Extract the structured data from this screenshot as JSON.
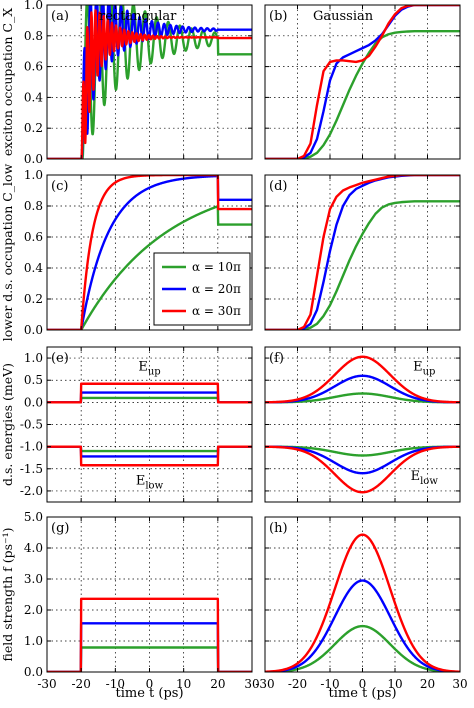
{
  "colors": {
    "alpha_10pi": "#2ca02c",
    "alpha_20pi": "#0000ff",
    "alpha_30pi": "#ff0000",
    "grid": "#000000"
  },
  "legend": {
    "placement": "panel-c-lower-right",
    "entries": [
      {
        "series": "alpha_10pi",
        "label": "α = 10π"
      },
      {
        "series": "alpha_20pi",
        "label": "α = 20π"
      },
      {
        "series": "alpha_30pi",
        "label": "α = 30π"
      }
    ]
  },
  "row_ylabels": [
    "exciton occupation C_X",
    "lower d.s. occupation C_low",
    "d.s. energies (meV)",
    "field strength f (ps⁻¹)"
  ],
  "column_xlabel": "time t (ps)",
  "chart_data": [
    {
      "panel": "a",
      "label": "(a)",
      "title": "rectangular",
      "type": "line",
      "pulse": "rectangular",
      "xlim": [
        -30,
        30
      ],
      "ylim": [
        0,
        1.0
      ],
      "grid": true,
      "xticks": [
        -30,
        -20,
        -10,
        0,
        10,
        20,
        30
      ],
      "yticks": [
        0,
        0.2,
        0.4,
        0.6,
        0.8,
        1.0
      ],
      "ytick_labels": [
        "0.0",
        "0.2",
        "0.4",
        "0.6",
        "0.8",
        "1.0"
      ],
      "series": [
        {
          "key": "alpha_10pi",
          "before": 0,
          "target": 0.78,
          "amp": 0.68,
          "tau": 14,
          "period": 3.4,
          "after": 0.68
        },
        {
          "key": "alpha_20pi",
          "before": 0,
          "target": 0.84,
          "amp": 0.55,
          "tau": 9,
          "period": 1.8,
          "after": 0.84
        },
        {
          "key": "alpha_30pi",
          "before": 0,
          "target": 0.79,
          "amp": 0.5,
          "tau": 5.5,
          "period": 1.2,
          "after": 0.785
        }
      ]
    },
    {
      "panel": "b",
      "label": "(b)",
      "title": "Gaussian",
      "type": "line",
      "pulse": "gaussian",
      "xlim": [
        -30,
        30
      ],
      "ylim": [
        0,
        1.0
      ],
      "grid": true,
      "xticks": [
        -30,
        -20,
        -10,
        0,
        10,
        20,
        30
      ],
      "yticks": [
        0,
        0.2,
        0.4,
        0.6,
        0.8,
        1.0
      ],
      "series": [
        {
          "key": "alpha_10pi",
          "x": [
            -30,
            -20,
            -18,
            -16,
            -14,
            -12,
            -10,
            -8,
            -6,
            -4,
            -2,
            0,
            2,
            4,
            6,
            8,
            10,
            12,
            14,
            16,
            20,
            30
          ],
          "y": [
            0,
            0,
            0.005,
            0.015,
            0.04,
            0.09,
            0.16,
            0.25,
            0.35,
            0.45,
            0.54,
            0.62,
            0.69,
            0.75,
            0.79,
            0.81,
            0.82,
            0.825,
            0.828,
            0.83,
            0.83,
            0.83
          ]
        },
        {
          "key": "alpha_20pi",
          "x": [
            -30,
            -20,
            -18,
            -16,
            -14,
            -12,
            -10,
            -8,
            -6,
            -4,
            -2,
            0,
            2,
            4,
            6,
            8,
            10,
            12,
            14,
            16,
            18,
            20,
            30
          ],
          "y": [
            0,
            0,
            0.01,
            0.04,
            0.13,
            0.31,
            0.51,
            0.62,
            0.66,
            0.68,
            0.7,
            0.72,
            0.74,
            0.77,
            0.81,
            0.87,
            0.93,
            0.97,
            0.99,
            1.0,
            1.0,
            1.0,
            1.0
          ]
        },
        {
          "key": "alpha_30pi",
          "x": [
            -30,
            -20,
            -18,
            -16,
            -14,
            -12,
            -10,
            -8,
            -6,
            -4,
            -2,
            0,
            2,
            4,
            6,
            8,
            10,
            12,
            14,
            16,
            18,
            20,
            30
          ],
          "y": [
            0,
            0,
            0.02,
            0.1,
            0.35,
            0.57,
            0.63,
            0.64,
            0.64,
            0.635,
            0.63,
            0.64,
            0.67,
            0.73,
            0.8,
            0.88,
            0.94,
            0.98,
            0.995,
            1.0,
            1.0,
            1.0,
            1.0
          ]
        }
      ]
    },
    {
      "panel": "c",
      "label": "(c)",
      "type": "line",
      "pulse": "rectangular",
      "xlim": [
        -30,
        30
      ],
      "ylim": [
        0,
        1.0
      ],
      "grid": true,
      "xticks": [
        -30,
        -20,
        -10,
        0,
        10,
        20,
        30
      ],
      "yticks": [
        0,
        0.2,
        0.4,
        0.6,
        0.8,
        1.0
      ],
      "ytick_labels": [
        "0.0",
        "0.2",
        "0.4",
        "0.6",
        "0.8",
        "1.0"
      ],
      "series": [
        {
          "key": "alpha_10pi",
          "before": 0,
          "limit": 1.0,
          "tau": 25,
          "after": 0.68
        },
        {
          "key": "alpha_20pi",
          "before": 0,
          "limit": 1.0,
          "tau": 8,
          "after": 0.84
        },
        {
          "key": "alpha_30pi",
          "before": 0,
          "limit": 1.0,
          "tau": 3.3,
          "after": 0.78
        }
      ]
    },
    {
      "panel": "d",
      "label": "(d)",
      "type": "line",
      "pulse": "gaussian",
      "xlim": [
        -30,
        30
      ],
      "ylim": [
        0,
        1.0
      ],
      "grid": true,
      "xticks": [
        -30,
        -20,
        -10,
        0,
        10,
        20,
        30
      ],
      "yticks": [
        0,
        0.2,
        0.4,
        0.6,
        0.8,
        1.0
      ],
      "series": [
        {
          "key": "alpha_10pi",
          "x": [
            -30,
            -20,
            -18,
            -16,
            -14,
            -12,
            -10,
            -8,
            -6,
            -4,
            -2,
            0,
            2,
            4,
            6,
            8,
            10,
            12,
            14,
            16,
            20,
            30
          ],
          "y": [
            0,
            0,
            0.005,
            0.015,
            0.04,
            0.09,
            0.16,
            0.25,
            0.35,
            0.45,
            0.54,
            0.62,
            0.69,
            0.75,
            0.79,
            0.81,
            0.82,
            0.825,
            0.828,
            0.83,
            0.83,
            0.83
          ]
        },
        {
          "key": "alpha_20pi",
          "x": [
            -30,
            -20,
            -18,
            -16,
            -14,
            -12,
            -10,
            -8,
            -6,
            -4,
            -2,
            0,
            2,
            4,
            6,
            8,
            10,
            12,
            16,
            20,
            30
          ],
          "y": [
            0,
            0,
            0.01,
            0.04,
            0.13,
            0.31,
            0.51,
            0.68,
            0.8,
            0.87,
            0.91,
            0.93,
            0.95,
            0.965,
            0.975,
            0.985,
            0.99,
            0.995,
            1.0,
            1.0,
            1.0
          ]
        },
        {
          "key": "alpha_30pi",
          "x": [
            -30,
            -20,
            -18,
            -16,
            -14,
            -12,
            -10,
            -8,
            -6,
            -4,
            -2,
            0,
            2,
            4,
            6,
            8,
            10,
            12,
            16,
            20,
            30
          ],
          "y": [
            0,
            0,
            0.02,
            0.1,
            0.35,
            0.6,
            0.78,
            0.86,
            0.9,
            0.92,
            0.935,
            0.95,
            0.96,
            0.97,
            0.98,
            0.99,
            0.995,
            1.0,
            1.0,
            1.0,
            1.0
          ]
        }
      ]
    },
    {
      "panel": "e",
      "label": "(e)",
      "type": "line",
      "pulse": "rectangular",
      "xlim": [
        -30,
        30
      ],
      "ylim": [
        -2.25,
        1.25
      ],
      "grid": true,
      "xticks": [
        -30,
        -20,
        -10,
        0,
        10,
        20,
        30
      ],
      "yticks": [
        -2.0,
        -1.5,
        -1.0,
        -0.5,
        0.0,
        0.5,
        1.0
      ],
      "ytick_labels": [
        "-2.0",
        "-1.5",
        "-1.0",
        "-0.5",
        "0.0",
        "0.5",
        "1.0"
      ],
      "annotations": [
        {
          "text": "E",
          "sub": "up",
          "x": 0,
          "y": 0.72
        },
        {
          "text": "E",
          "sub": "low",
          "x": 0,
          "y": -1.85
        }
      ],
      "series": [
        {
          "key": "alpha_10pi",
          "branch": "upper",
          "base": 0,
          "peak": 0.1
        },
        {
          "key": "alpha_20pi",
          "branch": "upper",
          "base": 0,
          "peak": 0.22
        },
        {
          "key": "alpha_30pi",
          "branch": "upper",
          "base": 0,
          "peak": 0.42
        },
        {
          "key": "alpha_10pi",
          "branch": "lower",
          "base": -1.0,
          "peak": -1.1
        },
        {
          "key": "alpha_20pi",
          "branch": "lower",
          "base": -1.0,
          "peak": -1.22
        },
        {
          "key": "alpha_30pi",
          "branch": "lower",
          "base": -1.0,
          "peak": -1.42
        }
      ]
    },
    {
      "panel": "f",
      "label": "(f)",
      "type": "line",
      "pulse": "gaussian",
      "xlim": [
        -30,
        30
      ],
      "ylim": [
        -2.25,
        1.25
      ],
      "grid": true,
      "xticks": [
        -30,
        -20,
        -10,
        0,
        10,
        20,
        30
      ],
      "yticks": [
        -2.0,
        -1.5,
        -1.0,
        -0.5,
        0.0,
        0.5,
        1.0
      ],
      "annotations": [
        {
          "text": "E",
          "sub": "up",
          "x": 19,
          "y": 0.72
        },
        {
          "text": "E",
          "sub": "low",
          "x": 19,
          "y": -1.75
        }
      ],
      "series": [
        {
          "key": "alpha_10pi",
          "branch": "upper",
          "base": 0,
          "peak": 0.2,
          "sigma": 8.5
        },
        {
          "key": "alpha_20pi",
          "branch": "upper",
          "base": 0,
          "peak": 0.6,
          "sigma": 8.5
        },
        {
          "key": "alpha_30pi",
          "branch": "upper",
          "base": 0,
          "peak": 1.03,
          "sigma": 8.5
        },
        {
          "key": "alpha_10pi",
          "branch": "lower",
          "base": -1.0,
          "peak": -1.2,
          "sigma": 8.5
        },
        {
          "key": "alpha_20pi",
          "branch": "lower",
          "base": -1.0,
          "peak": -1.6,
          "sigma": 8.5
        },
        {
          "key": "alpha_30pi",
          "branch": "lower",
          "base": -1.0,
          "peak": -2.03,
          "sigma": 8.5
        }
      ]
    },
    {
      "panel": "g",
      "label": "(g)",
      "type": "line",
      "pulse": "rectangular",
      "xlim": [
        -30,
        30
      ],
      "ylim": [
        0,
        5.0
      ],
      "grid": true,
      "xticks": [
        -30,
        -20,
        -10,
        0,
        10,
        20,
        30
      ],
      "xtick_labels": [
        "-30",
        "-20",
        "-10",
        "0",
        "10",
        "20",
        "30"
      ],
      "yticks": [
        0,
        1,
        2,
        3,
        4,
        5
      ],
      "ytick_labels": [
        "0.0",
        "1.0",
        "2.0",
        "3.0",
        "4.0",
        "5.0"
      ],
      "series": [
        {
          "key": "alpha_10pi",
          "base": 0,
          "peak": 0.79
        },
        {
          "key": "alpha_20pi",
          "base": 0,
          "peak": 1.57
        },
        {
          "key": "alpha_30pi",
          "base": 0,
          "peak": 2.36
        }
      ]
    },
    {
      "panel": "h",
      "label": "(h)",
      "type": "line",
      "pulse": "gaussian",
      "xlim": [
        -30,
        30
      ],
      "ylim": [
        0,
        5.0
      ],
      "grid": true,
      "xticks": [
        -30,
        -20,
        -10,
        0,
        10,
        20,
        30
      ],
      "xtick_labels": [
        "-30",
        "-20",
        "-10",
        "0",
        "10",
        "20",
        "30"
      ],
      "yticks": [
        0,
        1,
        2,
        3,
        4,
        5
      ],
      "series": [
        {
          "key": "alpha_10pi",
          "base": 0,
          "peak": 1.48,
          "sigma": 8.5
        },
        {
          "key": "alpha_20pi",
          "base": 0,
          "peak": 2.95,
          "sigma": 8.5
        },
        {
          "key": "alpha_30pi",
          "base": 0,
          "peak": 4.43,
          "sigma": 8.5
        }
      ]
    }
  ]
}
